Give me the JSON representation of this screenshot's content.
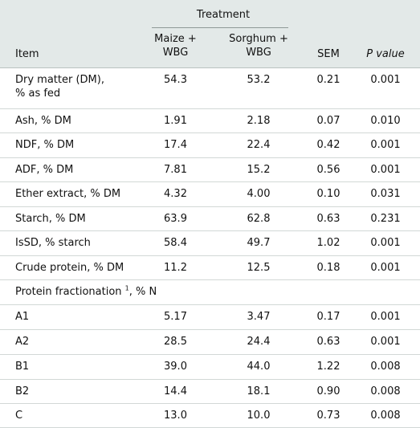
{
  "header": {
    "treatment": "Treatment",
    "item": "Item",
    "maize": [
      "Maize +",
      "WBG"
    ],
    "sorghum": [
      "Sorghum +",
      "WBG"
    ],
    "sem": "SEM",
    "p_value": "P value"
  },
  "rows": [
    {
      "item": [
        "Dry matter (DM),",
        "% as fed"
      ],
      "maize": "54.3",
      "sorghum": "53.2",
      "sem": "0.21",
      "p": "0.001"
    },
    {
      "item": [
        "Ash, % DM"
      ],
      "maize": "1.91",
      "sorghum": "2.18",
      "sem": "0.07",
      "p": "0.010"
    },
    {
      "item": [
        "NDF, % DM"
      ],
      "maize": "17.4",
      "sorghum": "22.4",
      "sem": "0.42",
      "p": "0.001"
    },
    {
      "item": [
        "ADF, % DM"
      ],
      "maize": "7.81",
      "sorghum": "15.2",
      "sem": "0.56",
      "p": "0.001"
    },
    {
      "item": [
        "Ether extract, % DM"
      ],
      "maize": "4.32",
      "sorghum": "4.00",
      "sem": "0.10",
      "p": "0.031"
    },
    {
      "item": [
        "Starch, % DM"
      ],
      "maize": "63.9",
      "sorghum": "62.8",
      "sem": "0.63",
      "p": "0.231"
    },
    {
      "item": [
        "IsSD, % starch"
      ],
      "maize": "58.4",
      "sorghum": "49.7",
      "sem": "1.02",
      "p": "0.001"
    },
    {
      "item": [
        "Crude protein, % DM"
      ],
      "maize": "11.2",
      "sorghum": "12.5",
      "sem": "0.18",
      "p": "0.001"
    },
    {
      "item": [
        "Protein fractionation"
      ],
      "sup": "1",
      "suffix": ", % N",
      "maize": "",
      "sorghum": "",
      "sem": "",
      "p": ""
    },
    {
      "item": [
        "A1"
      ],
      "maize": "5.17",
      "sorghum": "3.47",
      "sem": "0.17",
      "p": "0.001"
    },
    {
      "item": [
        "A2"
      ],
      "maize": "28.5",
      "sorghum": "24.4",
      "sem": "0.63",
      "p": "0.001"
    },
    {
      "item": [
        "B1"
      ],
      "maize": "39.0",
      "sorghum": "44.0",
      "sem": "1.22",
      "p": "0.008"
    },
    {
      "item": [
        "B2"
      ],
      "maize": "14.4",
      "sorghum": "18.1",
      "sem": "0.90",
      "p": "0.008"
    },
    {
      "item": [
        "C"
      ],
      "maize": "13.0",
      "sorghum": "10.0",
      "sem": "0.73",
      "p": "0.008"
    }
  ]
}
